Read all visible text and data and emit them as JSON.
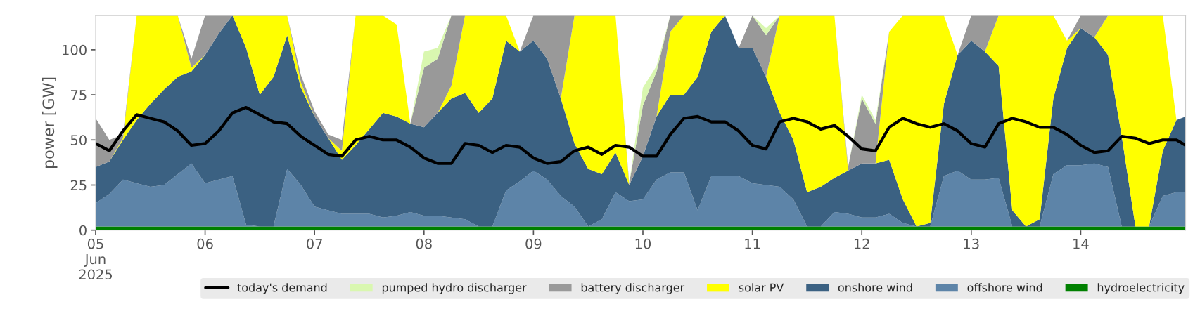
{
  "chart_data": {
    "type": "area",
    "stacked": true,
    "ylabel": "power [GW]",
    "legend": "bottom",
    "grid": false,
    "xlim": [
      "2025-06-05T00:00",
      "2025-06-14T23:00"
    ],
    "ylim": [
      0,
      119
    ],
    "yticks": [
      0,
      25,
      50,
      75,
      100
    ],
    "xticks": [
      {
        "value": "2025-06-05",
        "label": "05\nJun\n2025"
      },
      {
        "value": "2025-06-06",
        "label": "06"
      },
      {
        "value": "2025-06-07",
        "label": "07"
      },
      {
        "value": "2025-06-08",
        "label": "08"
      },
      {
        "value": "2025-06-09",
        "label": "09"
      },
      {
        "value": "2025-06-10",
        "label": "10"
      },
      {
        "value": "2025-06-11",
        "label": "11"
      },
      {
        "value": "2025-06-12",
        "label": "12"
      },
      {
        "value": "2025-06-13",
        "label": "13"
      },
      {
        "value": "2025-06-14",
        "label": "14"
      }
    ],
    "x": [
      "2025-06-05T00:00",
      "2025-06-05T03:00",
      "2025-06-05T06:00",
      "2025-06-05T09:00",
      "2025-06-05T12:00",
      "2025-06-05T15:00",
      "2025-06-05T18:00",
      "2025-06-05T21:00",
      "2025-06-06T00:00",
      "2025-06-06T03:00",
      "2025-06-06T06:00",
      "2025-06-06T09:00",
      "2025-06-06T12:00",
      "2025-06-06T15:00",
      "2025-06-06T18:00",
      "2025-06-06T21:00",
      "2025-06-07T00:00",
      "2025-06-07T03:00",
      "2025-06-07T06:00",
      "2025-06-07T09:00",
      "2025-06-07T12:00",
      "2025-06-07T15:00",
      "2025-06-07T18:00",
      "2025-06-07T21:00",
      "2025-06-08T00:00",
      "2025-06-08T03:00",
      "2025-06-08T06:00",
      "2025-06-08T09:00",
      "2025-06-08T12:00",
      "2025-06-08T15:00",
      "2025-06-08T18:00",
      "2025-06-08T21:00",
      "2025-06-09T00:00",
      "2025-06-09T03:00",
      "2025-06-09T06:00",
      "2025-06-09T09:00",
      "2025-06-09T12:00",
      "2025-06-09T15:00",
      "2025-06-09T18:00",
      "2025-06-09T21:00",
      "2025-06-10T00:00",
      "2025-06-10T03:00",
      "2025-06-10T06:00",
      "2025-06-10T09:00",
      "2025-06-10T12:00",
      "2025-06-10T15:00",
      "2025-06-10T18:00",
      "2025-06-10T21:00",
      "2025-06-11T00:00",
      "2025-06-11T03:00",
      "2025-06-11T06:00",
      "2025-06-11T09:00",
      "2025-06-11T12:00",
      "2025-06-11T15:00",
      "2025-06-11T18:00",
      "2025-06-11T21:00",
      "2025-06-12T00:00",
      "2025-06-12T03:00",
      "2025-06-12T06:00",
      "2025-06-12T09:00",
      "2025-06-12T12:00",
      "2025-06-12T15:00",
      "2025-06-12T18:00",
      "2025-06-12T21:00",
      "2025-06-13T00:00",
      "2025-06-13T03:00",
      "2025-06-13T06:00",
      "2025-06-13T09:00",
      "2025-06-13T12:00",
      "2025-06-13T15:00",
      "2025-06-13T18:00",
      "2025-06-13T21:00",
      "2025-06-14T00:00",
      "2025-06-14T03:00",
      "2025-06-14T06:00",
      "2025-06-14T09:00",
      "2025-06-14T12:00",
      "2025-06-14T15:00",
      "2025-06-14T18:00",
      "2025-06-14T21:00",
      "2025-06-14T23:00"
    ],
    "series": [
      {
        "name": "hydroelectricity",
        "color": "#008000",
        "values": [
          2,
          2,
          2,
          2,
          2,
          2,
          2,
          2,
          2,
          2,
          2,
          2,
          2,
          2,
          2,
          2,
          2,
          2,
          2,
          2,
          2,
          2,
          2,
          2,
          2,
          2,
          2,
          2,
          2,
          2,
          2,
          2,
          2,
          2,
          2,
          2,
          2,
          2,
          2,
          2,
          2,
          2,
          2,
          2,
          2,
          2,
          2,
          2,
          2,
          2,
          2,
          2,
          2,
          2,
          2,
          2,
          2,
          2,
          2,
          2,
          2,
          2,
          2,
          2,
          2,
          2,
          2,
          2,
          2,
          2,
          2,
          2,
          2,
          2,
          2,
          2,
          2,
          2,
          2,
          2,
          2
        ]
      },
      {
        "name": "offshore wind",
        "color": "#5d84a8",
        "values": [
          13,
          18,
          26,
          24,
          22,
          23,
          29,
          35,
          24,
          26,
          28,
          1,
          0,
          0,
          32,
          23,
          11,
          9,
          7,
          7,
          7,
          5,
          6,
          8,
          6,
          6,
          5,
          4,
          0,
          0,
          20,
          25,
          31,
          26,
          17,
          11,
          0,
          4,
          19,
          14,
          15,
          26,
          30,
          30,
          9,
          28,
          28,
          28,
          24,
          23,
          22,
          15,
          0,
          0,
          8,
          7,
          5,
          5,
          7,
          2,
          0,
          0,
          28,
          31,
          26,
          26,
          27,
          0,
          0,
          0,
          29,
          34,
          34,
          35,
          33,
          0,
          0,
          0,
          17,
          19,
          19
        ]
      },
      {
        "name": "onshore wind",
        "color": "#3b6182",
        "values": [
          20,
          18,
          22,
          35,
          46,
          53,
          54,
          51,
          71,
          81,
          89,
          98,
          73,
          83,
          74,
          54,
          50,
          40,
          30,
          38,
          47,
          58,
          55,
          49,
          49,
          57,
          66,
          70,
          63,
          71,
          83,
          72,
          72,
          67,
          54,
          35,
          32,
          25,
          22,
          9,
          24,
          35,
          43,
          43,
          74,
          80,
          89,
          71,
          75,
          60,
          41,
          33,
          19,
          22,
          19,
          24,
          30,
          30,
          30,
          13,
          0,
          2,
          40,
          64,
          77,
          71,
          62,
          9,
          0,
          4,
          42,
          65,
          76,
          70,
          62,
          50,
          0,
          0,
          25,
          40,
          42
        ]
      },
      {
        "name": "solar PV",
        "color": "#ffff00",
        "values": [
          null,
          0,
          1,
          58,
          49,
          41,
          34,
          2,
          0,
          null,
          0,
          18,
          44,
          34,
          11,
          3,
          0,
          0,
          5,
          72,
          63,
          54,
          51,
          0,
          null,
          0,
          7,
          43,
          54,
          46,
          14,
          0,
          null,
          null,
          0,
          71,
          85,
          88,
          76,
          0,
          null,
          0,
          35,
          44,
          34,
          9,
          0,
          null,
          null,
          0,
          54,
          69,
          98,
          95,
          90,
          0,
          null,
          0,
          71,
          102,
          117,
          115,
          49,
          0,
          null,
          0,
          28,
          108,
          117,
          113,
          46,
          4,
          0,
          0,
          22,
          67,
          117,
          117,
          75,
          0,
          null
        ]
      },
      {
        "name": "battery discharger",
        "color": "#999999",
        "values": [
          27,
          12,
          2,
          0,
          null,
          null,
          0,
          5,
          22,
          10,
          0,
          null,
          null,
          null,
          0,
          4,
          3,
          2,
          6,
          0,
          null,
          null,
          null,
          0,
          33,
          30,
          39,
          0,
          null,
          null,
          null,
          0,
          14,
          24,
          46,
          0,
          null,
          null,
          0,
          1,
          28,
          25,
          9,
          0,
          null,
          null,
          null,
          0,
          18,
          23,
          0,
          null,
          null,
          null,
          0,
          2,
          36,
          22,
          0,
          null,
          null,
          null,
          null,
          0,
          14,
          20,
          0,
          null,
          null,
          null,
          null,
          0,
          7,
          12,
          0,
          null,
          null,
          null,
          null,
          null,
          null
        ]
      },
      {
        "name": "pumped hydro discharger",
        "color": "#d9f7b0",
        "values": [
          null,
          null,
          null,
          null,
          null,
          null,
          null,
          null,
          null,
          null,
          null,
          null,
          null,
          null,
          null,
          null,
          null,
          null,
          null,
          null,
          null,
          null,
          null,
          0,
          9,
          6,
          0,
          null,
          null,
          null,
          null,
          null,
          null,
          null,
          null,
          null,
          null,
          null,
          null,
          0,
          10,
          3,
          0,
          null,
          null,
          null,
          null,
          null,
          0,
          4,
          0,
          null,
          null,
          null,
          null,
          0,
          2,
          2,
          0,
          null,
          null,
          null,
          null,
          null,
          null,
          null,
          null,
          null,
          null,
          null,
          null,
          null,
          null,
          null,
          null,
          null,
          null,
          null,
          null,
          null,
          null
        ]
      },
      {
        "name": "today's demand",
        "type": "line",
        "color": "#000000",
        "values": [
          48,
          44,
          55,
          64,
          62,
          60,
          55,
          47,
          48,
          55,
          65,
          68,
          64,
          60,
          59,
          52,
          47,
          42,
          41,
          50,
          52,
          50,
          50,
          46,
          40,
          37,
          37,
          48,
          47,
          43,
          47,
          46,
          40,
          37,
          38,
          44,
          46,
          42,
          47,
          46,
          41,
          41,
          53,
          62,
          63,
          60,
          60,
          55,
          47,
          45,
          60,
          62,
          60,
          56,
          58,
          52,
          45,
          44,
          57,
          62,
          59,
          57,
          59,
          55,
          48,
          46,
          59,
          62,
          60,
          57,
          57,
          53,
          47,
          43,
          44,
          52,
          51,
          48,
          50,
          50,
          47
        ]
      }
    ]
  }
}
